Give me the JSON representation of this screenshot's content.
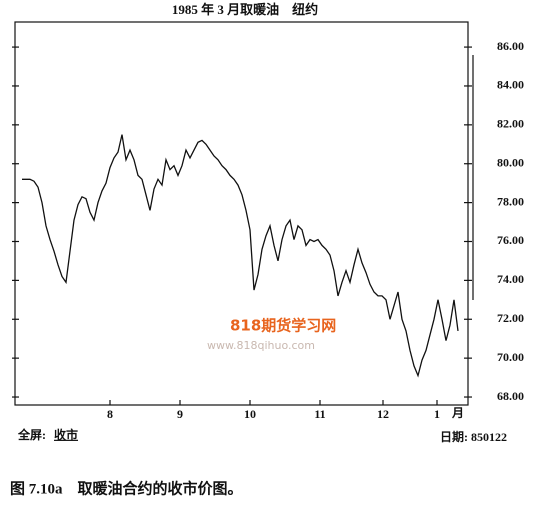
{
  "chart_data": {
    "type": "line",
    "title": "1985 年 3 月取暖油　纽约",
    "x_label": "月",
    "footer_left": "全屏:",
    "footer_left_value": "收市",
    "footer_right": "日期: 850122",
    "caption": "图 7.10a　取暖油合约的收市价图。",
    "watermark": [
      "818期货学习网",
      "www.818qihuo.com"
    ],
    "x": [
      0,
      1,
      2,
      3,
      4,
      5,
      6,
      7,
      8,
      9,
      10,
      11,
      12,
      13,
      14,
      15,
      16,
      17,
      18,
      19,
      20,
      21,
      22,
      23,
      24,
      25,
      26,
      27,
      28,
      29,
      30,
      31,
      32,
      33,
      34,
      35,
      36,
      37,
      38,
      39,
      40,
      41,
      42,
      43,
      44,
      45,
      46,
      47,
      48,
      49,
      50,
      51,
      52,
      53,
      54,
      55,
      56,
      57,
      58,
      59,
      60,
      61,
      62,
      63,
      64,
      65,
      66,
      67,
      68,
      69,
      70,
      71,
      72,
      73,
      74,
      75,
      76,
      77,
      78,
      79,
      80,
      81,
      82,
      83,
      84,
      85,
      86,
      87,
      88,
      89,
      90,
      91,
      92,
      93,
      94,
      95,
      96,
      97,
      98,
      99,
      100,
      101,
      102,
      103,
      104,
      105,
      106,
      107,
      108,
      109
    ],
    "series": [
      {
        "name": "收市",
        "color": "#111111",
        "values": [
          79.2,
          79.2,
          79.2,
          79.1,
          78.8,
          78.0,
          76.8,
          76.1,
          75.5,
          74.8,
          74.2,
          73.9,
          75.5,
          77.1,
          77.9,
          78.3,
          78.2,
          77.5,
          77.1,
          78.0,
          78.6,
          79.0,
          79.8,
          80.3,
          80.6,
          81.5,
          80.2,
          80.7,
          80.2,
          79.4,
          79.2,
          78.4,
          77.6,
          78.7,
          79.2,
          78.9,
          80.2,
          79.7,
          79.9,
          79.4,
          79.9,
          80.7,
          80.3,
          80.7,
          81.1,
          81.2,
          81.0,
          80.7,
          80.4,
          80.2,
          79.9,
          79.7,
          79.4,
          79.2,
          78.9,
          78.4,
          77.6,
          76.6,
          73.5,
          74.3,
          75.6,
          76.3,
          76.8,
          75.8,
          75.0,
          76.1,
          76.8,
          77.1,
          76.1,
          76.8,
          76.6,
          75.8,
          76.1,
          76.0,
          76.1,
          75.8,
          75.6,
          75.3,
          74.5,
          73.2,
          73.9,
          74.5,
          73.9,
          74.8,
          75.6,
          74.9,
          74.4,
          73.8,
          73.4,
          73.2,
          73.2,
          73.0,
          72.0,
          72.7,
          73.4,
          72.0,
          71.4,
          70.4,
          69.6,
          69.1,
          69.9,
          70.4,
          71.2,
          72.0,
          73.0,
          72.0,
          70.9,
          71.7,
          73.0,
          71.4
        ]
      }
    ],
    "xlim": [
      -1.75,
      111.5
    ],
    "xticks": [
      {
        "value": 22,
        "label": "8"
      },
      {
        "value": 39.5,
        "label": "9"
      },
      {
        "value": 57,
        "label": "10"
      },
      {
        "value": 74.5,
        "label": "11"
      },
      {
        "value": 90.25,
        "label": "12"
      },
      {
        "value": 103.75,
        "label": "1"
      }
    ],
    "ylim": [
      67.59,
      87.29
    ],
    "yticks": [
      {
        "value": 68,
        "label": "68.00"
      },
      {
        "value": 70,
        "label": "70.00"
      },
      {
        "value": 72,
        "label": "72.00"
      },
      {
        "value": 74,
        "label": "74.00"
      },
      {
        "value": 76,
        "label": "76.00"
      },
      {
        "value": 78,
        "label": "78.00"
      },
      {
        "value": 80,
        "label": "80.00"
      },
      {
        "value": 82,
        "label": "82.00"
      },
      {
        "value": 84,
        "label": "84.00"
      },
      {
        "value": 86,
        "label": "86.00"
      }
    ],
    "y_axis_side": "right"
  }
}
